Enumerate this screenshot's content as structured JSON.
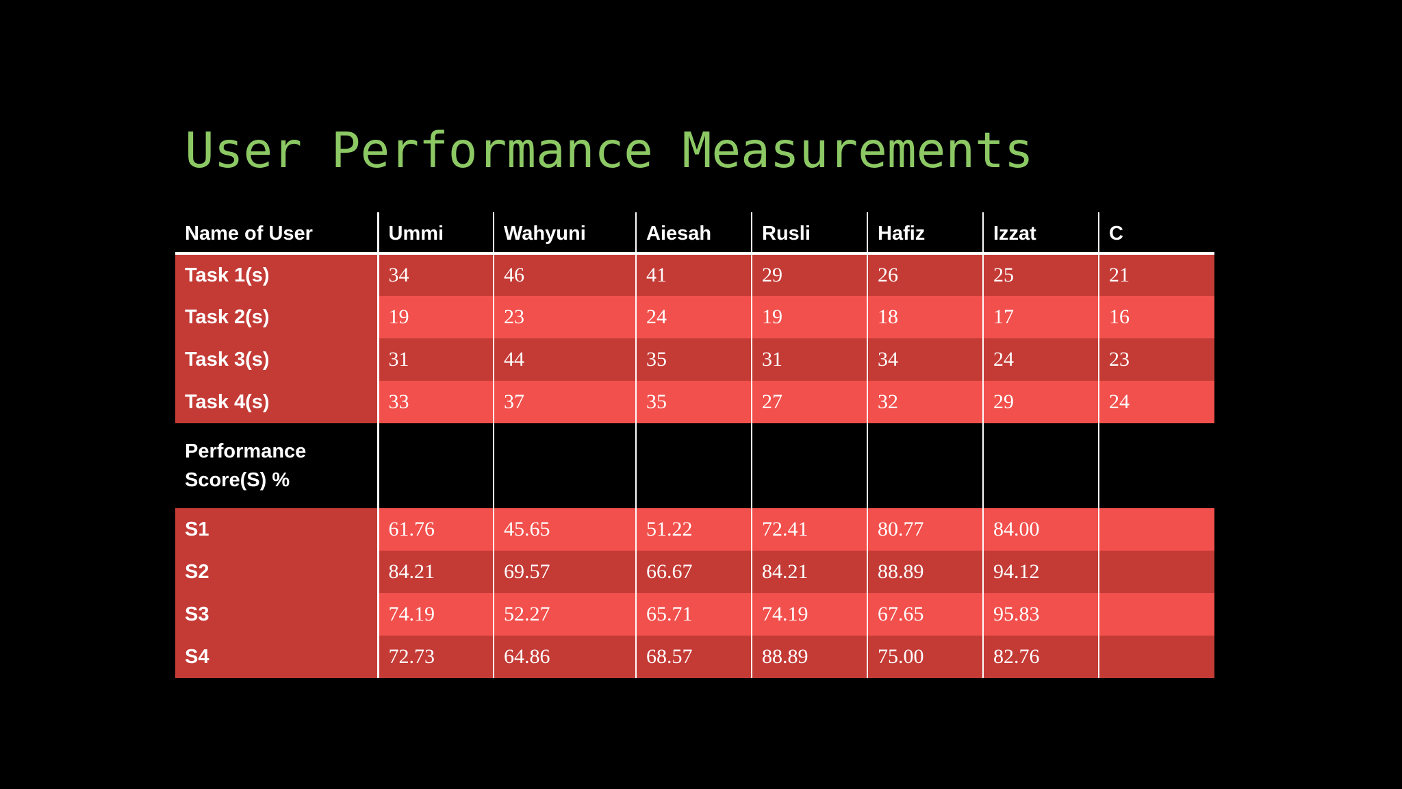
{
  "slide": {
    "title": "User Performance Measurements"
  },
  "colors": {
    "background": "#000000",
    "title": "#8cc864",
    "row_dark": "#c43b36",
    "row_light": "#f2504c",
    "text": "#ffffff",
    "grid_lines": "#ffffff"
  },
  "table": {
    "header_label": "Name of User",
    "users": [
      "Ummi",
      "Wahyuni",
      "Aiesah",
      "Rusli",
      "Hafiz",
      "Izzat",
      "C"
    ],
    "task_rows": [
      {
        "label": "Task 1(s)",
        "values": [
          "34",
          "46",
          "41",
          "29",
          "26",
          "25",
          "21"
        ]
      },
      {
        "label": "Task 2(s)",
        "values": [
          "19",
          "23",
          "24",
          "19",
          "18",
          "17",
          "16"
        ]
      },
      {
        "label": "Task 3(s)",
        "values": [
          "31",
          "44",
          "35",
          "31",
          "34",
          "24",
          "23"
        ]
      },
      {
        "label": "Task 4(s)",
        "values": [
          "33",
          "37",
          "35",
          "27",
          "32",
          "29",
          "24"
        ]
      }
    ],
    "section_label_line1": "Performance",
    "section_label_line2": "Score(S) %",
    "score_rows": [
      {
        "label": "S1",
        "values": [
          "61.76",
          "45.65",
          "51.22",
          "72.41",
          "80.77",
          "84.00",
          ""
        ]
      },
      {
        "label": "S2",
        "values": [
          "84.21",
          "69.57",
          "66.67",
          "84.21",
          "88.89",
          "94.12",
          ""
        ]
      },
      {
        "label": "S3",
        "values": [
          "74.19",
          "52.27",
          "65.71",
          "74.19",
          "67.65",
          "95.83",
          ""
        ]
      },
      {
        "label": "S4",
        "values": [
          "72.73",
          "64.86",
          "68.57",
          "88.89",
          "75.00",
          "82.76",
          ""
        ]
      }
    ]
  }
}
